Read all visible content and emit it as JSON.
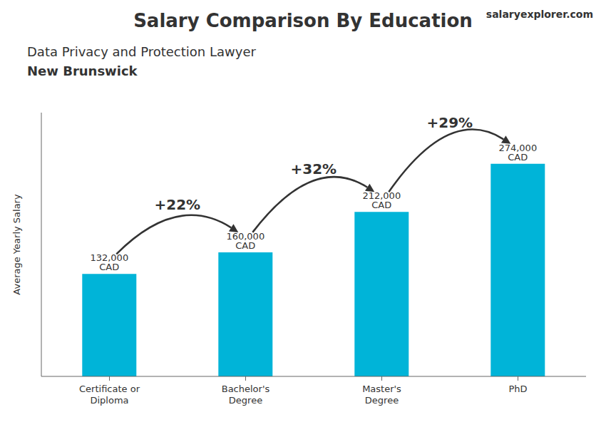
{
  "chart_data": {
    "type": "bar",
    "title": "Salary Comparison By Education",
    "subtitle": "Data Privacy and Protection Lawyer",
    "annotations": {
      "location": "New Brunswick",
      "brand": "salaryexplorer.com",
      "changes": [
        "+22%",
        "+32%",
        "+29%"
      ]
    },
    "categories": [
      "Certificate or\nDiploma",
      "Bachelor's\nDegree",
      "Master's\nDegree",
      "PhD"
    ],
    "values": [
      132000,
      160000,
      212000,
      274000
    ],
    "value_labels": [
      "132,000 CAD",
      "160,000 CAD",
      "212,000 CAD",
      "274,000 CAD"
    ],
    "data_labels": true,
    "color": "#00b4d8",
    "ylabel": "Average Yearly Salary",
    "ylim": [
      0,
      340000
    ],
    "tick_labels": "x",
    "grid": false
  }
}
